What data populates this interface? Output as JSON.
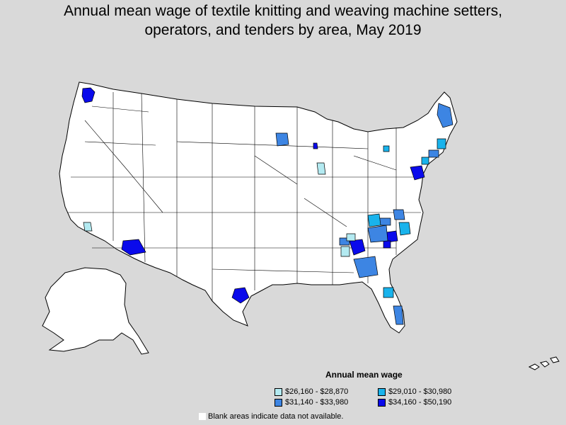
{
  "title": {
    "line1": "Annual mean wage of textile knitting and weaving machine setters,",
    "line2": "operators, and tenders by area, May 2019"
  },
  "legend": {
    "title": "Annual mean wage",
    "items": [
      {
        "label": "$26,160 - $28,870",
        "color": "#b3eaf1"
      },
      {
        "label": "$29,010 - $30,980",
        "color": "#19b3ec"
      },
      {
        "label": "$31,140 - $33,980",
        "color": "#3d85e3"
      },
      {
        "label": "$34,160 - $50,190",
        "color": "#0a0aeb"
      }
    ]
  },
  "note": "Blank areas indicate data not available.",
  "colors": {
    "background": "#d9d9d9",
    "land": "#ffffff",
    "border": "#000000"
  }
}
